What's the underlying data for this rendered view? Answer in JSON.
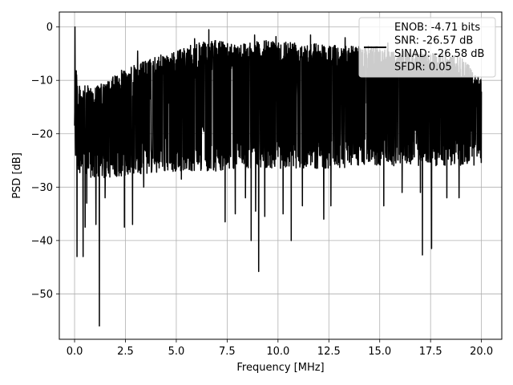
{
  "chart_data": {
    "type": "line",
    "xlabel": "Frequency [MHz]",
    "ylabel": "PSD [dB]",
    "xlim": [
      -0.75,
      21.0
    ],
    "ylim": [
      -58.5,
      2.8
    ],
    "x_ticks": [
      0.0,
      2.5,
      5.0,
      7.5,
      10.0,
      12.5,
      15.0,
      17.5,
      20.0
    ],
    "x_tick_labels": [
      "0.0",
      "2.5",
      "5.0",
      "7.5",
      "10.0",
      "12.5",
      "15.0",
      "17.5",
      "20.0"
    ],
    "y_ticks": [
      0,
      -10,
      -20,
      -30,
      -40,
      -50
    ],
    "y_tick_labels": [
      "0",
      "−10",
      "−20",
      "−30",
      "−40",
      "−50"
    ],
    "grid": true,
    "legend_position": "top-right",
    "line_color": "#000000",
    "series": [
      {
        "legend_lines": [
          "ENOB: -4.71 bits",
          "SNR: -26.57 dB",
          "SINAD: -26.58 dB",
          "SFDR: 0.05"
        ],
        "x_range": [
          0.0,
          20.0
        ],
        "envelope": {
          "x": [
            0.0,
            0.05,
            0.15,
            0.5,
            1.0,
            1.5,
            2.0,
            2.5,
            3.0,
            4.0,
            5.0,
            6.0,
            7.0,
            8.0,
            9.0,
            10.0,
            11.0,
            12.0,
            13.0,
            14.0,
            15.0,
            16.0,
            17.0,
            18.0,
            19.0,
            20.0
          ],
          "upper": [
            0.0,
            -4.0,
            -11.0,
            -11.0,
            -11.0,
            -10.5,
            -9.0,
            -7.5,
            -7.0,
            -5.5,
            -4.5,
            -3.0,
            -2.5,
            -3.0,
            -2.5,
            -2.5,
            -2.5,
            -3.0,
            -3.5,
            -3.5,
            -3.5,
            -4.5,
            -4.5,
            -5.0,
            -5.5,
            -10.0
          ],
          "lower": [
            -20.0,
            -25.0,
            -27.0,
            -28.0,
            -28.5,
            -28.5,
            -28.0,
            -28.0,
            -27.5,
            -27.5,
            -27.0,
            -27.0,
            -27.0,
            -26.5,
            -26.5,
            -26.5,
            -26.5,
            -26.5,
            -26.5,
            -26.0,
            -26.0,
            -26.0,
            -26.0,
            -26.0,
            -26.0,
            -26.0
          ]
        },
        "dips": [
          {
            "x": 0.12,
            "y": -43.0
          },
          {
            "x": 0.42,
            "y": -43.0
          },
          {
            "x": 0.52,
            "y": -37.5
          },
          {
            "x": 0.6,
            "y": -33.0
          },
          {
            "x": 1.05,
            "y": -37.0
          },
          {
            "x": 1.22,
            "y": -56.0
          },
          {
            "x": 1.5,
            "y": -32.0
          },
          {
            "x": 2.45,
            "y": -37.5
          },
          {
            "x": 2.85,
            "y": -37.0
          },
          {
            "x": 3.4,
            "y": -30.0
          },
          {
            "x": 5.25,
            "y": -28.5
          },
          {
            "x": 7.4,
            "y": -36.5
          },
          {
            "x": 7.9,
            "y": -35.0
          },
          {
            "x": 8.4,
            "y": -32.0
          },
          {
            "x": 8.68,
            "y": -40.0
          },
          {
            "x": 8.9,
            "y": -34.5
          },
          {
            "x": 9.05,
            "y": -45.8
          },
          {
            "x": 9.35,
            "y": -35.5
          },
          {
            "x": 10.25,
            "y": -35.0
          },
          {
            "x": 10.65,
            "y": -40.0
          },
          {
            "x": 11.2,
            "y": -33.5
          },
          {
            "x": 12.25,
            "y": -36.0
          },
          {
            "x": 12.6,
            "y": -33.5
          },
          {
            "x": 15.2,
            "y": -33.5
          },
          {
            "x": 16.1,
            "y": -31.0
          },
          {
            "x": 17.0,
            "y": -31.0
          },
          {
            "x": 17.1,
            "y": -42.7
          },
          {
            "x": 17.55,
            "y": -41.5
          },
          {
            "x": 18.3,
            "y": -32.0
          },
          {
            "x": 18.9,
            "y": -32.0
          }
        ],
        "peaks": [
          {
            "x": 0.02,
            "y": 0.0
          },
          {
            "x": 3.1,
            "y": -4.5
          },
          {
            "x": 5.9,
            "y": -2.2
          },
          {
            "x": 6.6,
            "y": -0.5
          },
          {
            "x": 8.85,
            "y": -1.5
          },
          {
            "x": 9.9,
            "y": -1.8
          },
          {
            "x": 11.6,
            "y": -1.5
          },
          {
            "x": 13.3,
            "y": -2.0
          },
          {
            "x": 15.4,
            "y": -3.0
          }
        ]
      }
    ]
  }
}
